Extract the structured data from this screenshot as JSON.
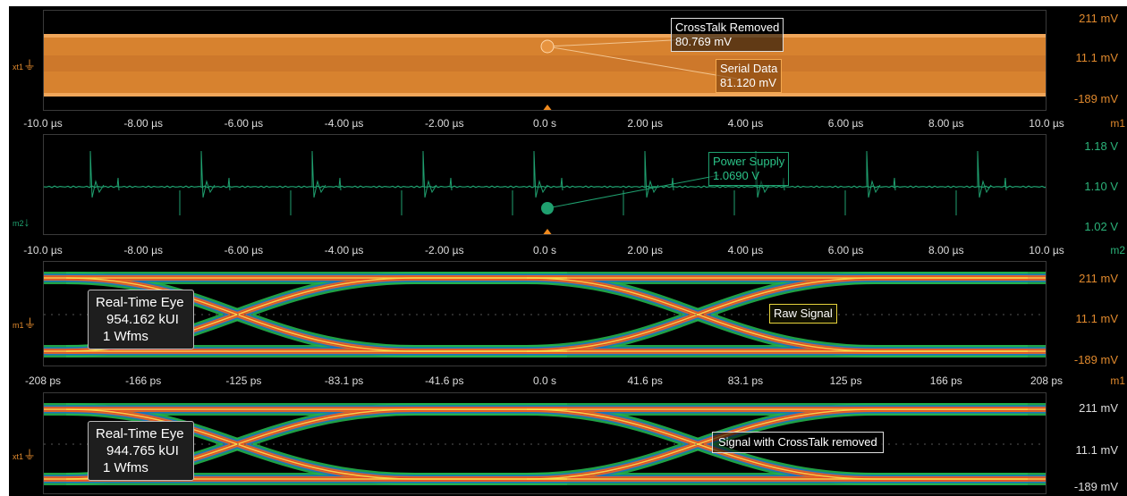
{
  "panels": {
    "serial": {
      "scale": [
        "211 mV",
        "11.1 mV",
        "-189 mV"
      ],
      "marker": "xt1",
      "callout_crosstalk": {
        "title": "CrossTalk Removed",
        "value": "80.769 mV"
      },
      "callout_serial": {
        "title": "Serial Data",
        "value": "81.120 mV"
      },
      "color": "#e0892d"
    },
    "power": {
      "scale": [
        "1.18 V",
        "1.10 V",
        "1.02 V"
      ],
      "marker": "m2",
      "callout": {
        "title": "Power Supply",
        "value": "1.0690 V"
      },
      "color": "#1fa06f"
    },
    "eye_raw": {
      "scale": [
        "211 mV",
        "11.1 mV",
        "-189 mV"
      ],
      "marker": "m1",
      "info": {
        "title": "Real-Time Eye",
        "ui": "954.162 kUI",
        "wfms": "1 Wfms"
      },
      "label": "Raw Signal"
    },
    "eye_clean": {
      "scale": [
        "211 mV",
        "11.1 mV",
        "-189 mV"
      ],
      "marker": "xt1",
      "info": {
        "title": "Real-Time Eye",
        "ui": "944.765 kUI",
        "wfms": "1 Wfms"
      },
      "label": "Signal with CrossTalk removed"
    }
  },
  "axes": {
    "time_us": {
      "ticks": [
        "-10.0 µs",
        "-8.00 µs",
        "-6.00 µs",
        "-4.00 µs",
        "-2.00 µs",
        "0.0 s",
        "2.00 µs",
        "4.00 µs",
        "6.00 µs",
        "8.00 µs",
        "10.0 µs"
      ]
    },
    "time_ps": {
      "ticks": [
        "-208 ps",
        "-166 ps",
        "-125 ps",
        "-83.1 ps",
        "-41.6 ps",
        "0.0 s",
        "41.6 ps",
        "83.1 ps",
        "125 ps",
        "166 ps",
        "208 ps"
      ]
    },
    "tags": [
      "m1",
      "m2",
      "m1"
    ]
  },
  "colors": {
    "orange": "#e0892d",
    "green": "#1fa06f",
    "scale_orange": "#e0892d",
    "scale_green": "#2bb37a",
    "trigger": "#f08a1e"
  }
}
